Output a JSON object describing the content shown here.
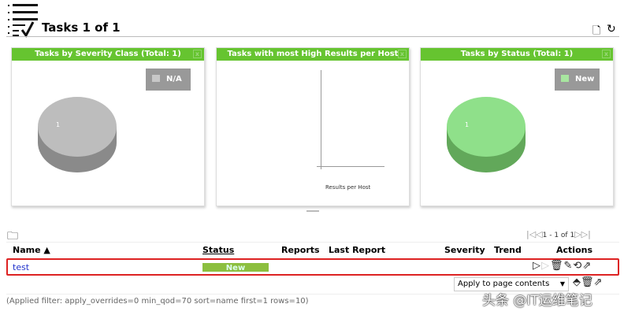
{
  "header": {
    "title": "Tasks 1 of 1",
    "icon": "task-list-icon"
  },
  "panels": [
    {
      "title": "Tasks by Severity Class (Total: 1)",
      "legend": "N/A",
      "legend_color": "#c0c0c0",
      "slice_label": "1",
      "pie_color": "#bdbdbd"
    },
    {
      "title": "Tasks with most High Results per Host",
      "xlabel": "Results per Host"
    },
    {
      "title": "Tasks by Status (Total: 1)",
      "legend": "New",
      "legend_color": "#a8e6a0",
      "slice_label": "1",
      "pie_color": "#8fe08a"
    }
  ],
  "pagination": "1 - 1 of 1",
  "table": {
    "columns": [
      "Name ▲",
      "Status",
      "Reports",
      "Last Report",
      "Severity",
      "Trend",
      "Actions"
    ],
    "rows": [
      {
        "name": "test",
        "status": "New",
        "status_progress": 100
      }
    ]
  },
  "bulk": {
    "selected": "Apply to page contents"
  },
  "filter_text": "(Applied filter: apply_overrides=0 min_qod=70 sort=name first=1 rows=10)",
  "watermark": "头条 @IT运维笔记",
  "colors": {
    "accent": "#66c430",
    "status_new": "#8cbf3f",
    "link": "#2233cc",
    "highlight": "#dd2222"
  }
}
